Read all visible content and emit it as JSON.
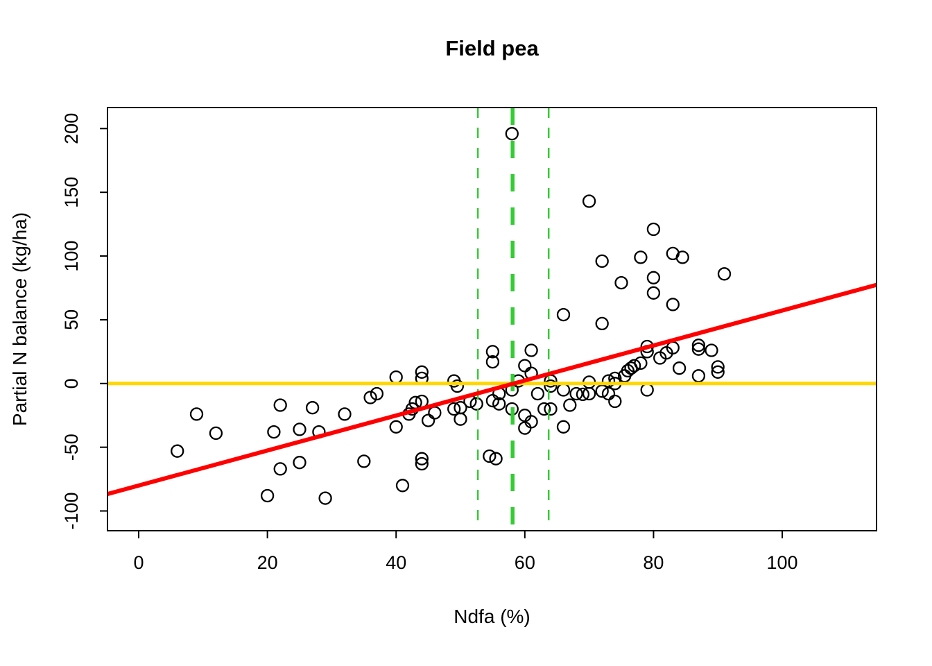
{
  "title": "Field pea",
  "chart_data": {
    "type": "scatter",
    "title": "Field pea",
    "xlabel": "Ndfa (%)",
    "ylabel": "Partial N balance (kg/ha)",
    "x_ticks": [
      0,
      20,
      40,
      60,
      80,
      100
    ],
    "y_ticks": [
      -100,
      -50,
      0,
      50,
      100,
      150,
      200
    ],
    "xlim": [
      -4.85,
      114.65
    ],
    "ylim": [
      -115.5,
      216.5
    ],
    "grid": false,
    "legend": "none",
    "point_style": {
      "marker": "open-circle",
      "color": "#000000",
      "radius": 8.5,
      "stroke_width": 2.3
    },
    "points": [
      [
        6,
        -53
      ],
      [
        9,
        -24
      ],
      [
        12,
        -39
      ],
      [
        20,
        -88
      ],
      [
        21,
        -38
      ],
      [
        22,
        -17
      ],
      [
        22,
        -67
      ],
      [
        25,
        -36
      ],
      [
        25,
        -62
      ],
      [
        27,
        -19
      ],
      [
        28,
        -38
      ],
      [
        29,
        -90
      ],
      [
        32,
        -24
      ],
      [
        35,
        -61
      ],
      [
        36,
        -11
      ],
      [
        37,
        -8
      ],
      [
        40,
        -34
      ],
      [
        40,
        5
      ],
      [
        41,
        -80
      ],
      [
        42,
        -24
      ],
      [
        42.5,
        -20
      ],
      [
        43,
        -15
      ],
      [
        44,
        -14
      ],
      [
        44,
        9
      ],
      [
        44,
        4
      ],
      [
        44,
        -59
      ],
      [
        44,
        -63
      ],
      [
        45,
        -29
      ],
      [
        46,
        -23
      ],
      [
        49,
        -20
      ],
      [
        49,
        2
      ],
      [
        49.5,
        -2
      ],
      [
        50,
        -19
      ],
      [
        50,
        -28
      ],
      [
        51.5,
        -14
      ],
      [
        52.5,
        -16
      ],
      [
        54.5,
        -57
      ],
      [
        55,
        -13.5
      ],
      [
        55,
        17
      ],
      [
        55,
        25
      ],
      [
        55.5,
        -59
      ],
      [
        56,
        -16
      ],
      [
        56,
        -8
      ],
      [
        58,
        -5
      ],
      [
        58,
        -20
      ],
      [
        58,
        196
      ],
      [
        59,
        2
      ],
      [
        60,
        -25
      ],
      [
        60,
        -35
      ],
      [
        60,
        14
      ],
      [
        61,
        -30
      ],
      [
        61,
        8
      ],
      [
        61,
        26
      ],
      [
        62,
        -8
      ],
      [
        63,
        -20
      ],
      [
        64,
        -20
      ],
      [
        64,
        -2
      ],
      [
        64,
        2
      ],
      [
        66,
        -5
      ],
      [
        66,
        -34
      ],
      [
        66,
        54
      ],
      [
        67,
        -17
      ],
      [
        68,
        -8
      ],
      [
        69,
        -8.5
      ],
      [
        70,
        -8
      ],
      [
        70,
        1
      ],
      [
        70,
        143
      ],
      [
        72,
        -6
      ],
      [
        72,
        47
      ],
      [
        72,
        96
      ],
      [
        73,
        -8
      ],
      [
        73,
        2
      ],
      [
        74,
        -14
      ],
      [
        74,
        0
      ],
      [
        74,
        4
      ],
      [
        75,
        79
      ],
      [
        75.5,
        6
      ],
      [
        76,
        10
      ],
      [
        76.5,
        12
      ],
      [
        77,
        14
      ],
      [
        78,
        16
      ],
      [
        78,
        99
      ],
      [
        79,
        -5
      ],
      [
        79,
        25
      ],
      [
        79,
        29
      ],
      [
        80,
        71
      ],
      [
        80,
        83
      ],
      [
        80,
        121
      ],
      [
        81,
        20
      ],
      [
        82,
        24
      ],
      [
        83,
        28
      ],
      [
        83,
        62
      ],
      [
        83,
        102
      ],
      [
        84,
        12
      ],
      [
        84.5,
        99
      ],
      [
        87,
        6
      ],
      [
        87,
        27
      ],
      [
        87,
        30
      ],
      [
        89,
        26
      ],
      [
        90,
        9
      ],
      [
        90,
        13
      ],
      [
        91,
        86
      ]
    ],
    "lines": [
      {
        "name": "zero-balance-line",
        "type": "horizontal",
        "y": 0,
        "color": "#FFD700",
        "width": 5,
        "dash": "solid"
      },
      {
        "name": "ci-lower-line",
        "type": "vertical",
        "x": 52.7,
        "color": "#33CC33",
        "width": 2.5,
        "dash": "15 14"
      },
      {
        "name": "ci-upper-line",
        "type": "vertical",
        "x": 63.7,
        "color": "#33CC33",
        "width": 2.5,
        "dash": "15 14"
      },
      {
        "name": "mean-ndfa-line",
        "type": "vertical",
        "x": 58.1,
        "color": "#33CC33",
        "width": 5.5,
        "dash": "25 23"
      },
      {
        "name": "regression-line",
        "type": "segment",
        "x1": -4.85,
        "y1": -86.7,
        "x2": 114.65,
        "y2": 77.4,
        "slope": 1.373,
        "intercept": -80,
        "color": "#FF0000",
        "width": 6,
        "dash": "solid"
      }
    ],
    "axis_color": "#000000"
  }
}
